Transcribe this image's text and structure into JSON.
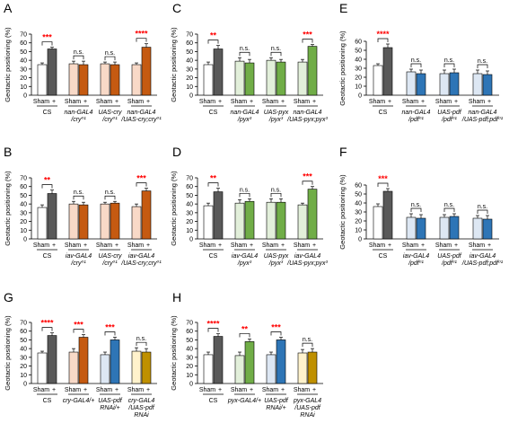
{
  "colors": {
    "sham": "#ffffff",
    "cs": "#595959",
    "cry_light": "#f8d9c7",
    "cry_dark": "#c55a11",
    "pyx_light": "#e2efda",
    "pyx_dark": "#70ad47",
    "pdf_light": "#dde7f3",
    "pdf_dark": "#2e75b6",
    "pdf_rnai_light": "#fff2cc",
    "pdf_rnai_dark": "#bf9000",
    "sig": "#ff0000",
    "ns": "#000000"
  },
  "chart_data": [
    {
      "panel": "A",
      "type": "bar",
      "ylabel": "Geotactic positioning (%)",
      "ylim": [
        0,
        70
      ],
      "yticks": [
        0,
        10,
        20,
        30,
        40,
        50,
        60,
        70
      ],
      "groups": [
        {
          "label": [
            "CS"
          ],
          "sham": 35,
          "sham_err": 2,
          "plus": 53,
          "plus_err": 2,
          "sig": "***",
          "light": "sham",
          "dark": "cs"
        },
        {
          "label": [
            "nan-GAL4",
            "/cry⁰¹"
          ],
          "sham": 36,
          "sham_err": 3,
          "plus": 35,
          "plus_err": 4,
          "sig": "n.s.",
          "light": "cry_light",
          "dark": "cry_dark"
        },
        {
          "label": [
            "UAS-cry",
            "/cry⁰¹"
          ],
          "sham": 36,
          "sham_err": 2,
          "plus": 35,
          "plus_err": 3,
          "sig": "n.s.",
          "light": "cry_light",
          "dark": "cry_dark"
        },
        {
          "label": [
            "nan-GAL4",
            "/UAS-cry;cry⁰¹"
          ],
          "sham": 35,
          "sham_err": 2,
          "plus": 55,
          "plus_err": 4,
          "sig": "****",
          "light": "cry_light",
          "dark": "cry_dark"
        }
      ]
    },
    {
      "panel": "B",
      "type": "bar",
      "ylabel": "Geotactic positioning (%)",
      "ylim": [
        0,
        70
      ],
      "yticks": [
        0,
        10,
        20,
        30,
        40,
        50,
        60,
        70
      ],
      "groups": [
        {
          "label": [
            "CS"
          ],
          "sham": 36,
          "sham_err": 3,
          "plus": 52,
          "plus_err": 4,
          "sig": "**",
          "light": "sham",
          "dark": "cs"
        },
        {
          "label": [
            "iav-GAL4",
            "/cry⁰¹"
          ],
          "sham": 40,
          "sham_err": 3,
          "plus": 39,
          "plus_err": 3,
          "sig": "n.s.",
          "light": "cry_light",
          "dark": "cry_dark"
        },
        {
          "label": [
            "UAS-cry",
            "/cry⁰¹"
          ],
          "sham": 40,
          "sham_err": 2,
          "plus": 41,
          "plus_err": 2,
          "sig": "n.s.",
          "light": "cry_light",
          "dark": "cry_dark"
        },
        {
          "label": [
            "iav-GAL4",
            "/UAS-cry;cry⁰¹"
          ],
          "sham": 37,
          "sham_err": 3,
          "plus": 55,
          "plus_err": 3,
          "sig": "***",
          "light": "cry_light",
          "dark": "cry_dark"
        }
      ]
    },
    {
      "panel": "C",
      "type": "bar",
      "ylabel": "Geotactic positioning (%)",
      "ylim": [
        0,
        70
      ],
      "yticks": [
        0,
        10,
        20,
        30,
        40,
        50,
        60,
        70
      ],
      "groups": [
        {
          "label": [
            "CS"
          ],
          "sham": 35,
          "sham_err": 3,
          "plus": 53,
          "plus_err": 4,
          "sig": "**",
          "light": "sham",
          "dark": "cs"
        },
        {
          "label": [
            "nan-GAL4",
            "/pyx³"
          ],
          "sham": 39,
          "sham_err": 4,
          "plus": 37,
          "plus_err": 4,
          "sig": "n.s.",
          "light": "pyx_light",
          "dark": "pyx_dark"
        },
        {
          "label": [
            "UAS-pyx",
            "/pyx³"
          ],
          "sham": 40,
          "sham_err": 3,
          "plus": 38,
          "plus_err": 3,
          "sig": "n.s.",
          "light": "pyx_light",
          "dark": "pyx_dark"
        },
        {
          "label": [
            "nan-GAL4",
            "/UAS-pyx;pyx³"
          ],
          "sham": 38,
          "sham_err": 3,
          "plus": 56,
          "plus_err": 2,
          "sig": "***",
          "light": "pyx_light",
          "dark": "pyx_dark"
        }
      ]
    },
    {
      "panel": "D",
      "type": "bar",
      "ylabel": "Geotactic positioning (%)",
      "ylim": [
        0,
        70
      ],
      "yticks": [
        0,
        10,
        20,
        30,
        40,
        50,
        60,
        70
      ],
      "groups": [
        {
          "label": [
            "CS"
          ],
          "sham": 38,
          "sham_err": 3,
          "plus": 54,
          "plus_err": 4,
          "sig": "**",
          "light": "sham",
          "dark": "cs"
        },
        {
          "label": [
            "iav-GAL4",
            "/pyx³"
          ],
          "sham": 41,
          "sham_err": 4,
          "plus": 43,
          "plus_err": 3,
          "sig": "n.s.",
          "light": "pyx_light",
          "dark": "pyx_dark"
        },
        {
          "label": [
            "UAS-pyx",
            "/pyx³"
          ],
          "sham": 42,
          "sham_err": 4,
          "plus": 42,
          "plus_err": 4,
          "sig": "n.s.",
          "light": "pyx_light",
          "dark": "pyx_dark"
        },
        {
          "label": [
            "iav-GAL4",
            "/UAS-pyx;pyx³"
          ],
          "sham": 39,
          "sham_err": 2,
          "plus": 57,
          "plus_err": 3,
          "sig": "***",
          "light": "pyx_light",
          "dark": "pyx_dark"
        }
      ]
    },
    {
      "panel": "E",
      "type": "bar",
      "ylabel": "Geotactic positioning (%)",
      "ylim": [
        0,
        60
      ],
      "yticks": [
        0,
        10,
        20,
        30,
        40,
        50,
        60
      ],
      "groups": [
        {
          "label": [
            "CS"
          ],
          "sham": 33,
          "sham_err": 2,
          "plus": 53,
          "plus_err": 4,
          "sig": "****",
          "light": "sham",
          "dark": "cs"
        },
        {
          "label": [
            "nan-GAL4",
            "/pdf⁰¹"
          ],
          "sham": 26,
          "sham_err": 3,
          "plus": 24,
          "plus_err": 4,
          "sig": "n.s.",
          "light": "pdf_light",
          "dark": "pdf_dark"
        },
        {
          "label": [
            "UAS-pdf",
            "/pdf⁰¹"
          ],
          "sham": 24,
          "sham_err": 4,
          "plus": 25,
          "plus_err": 4,
          "sig": "n.s.",
          "light": "pdf_light",
          "dark": "pdf_dark"
        },
        {
          "label": [
            "nan-GAL4",
            "/UAS-pdf;pdf⁰¹"
          ],
          "sham": 24,
          "sham_err": 4,
          "plus": 23,
          "plus_err": 4,
          "sig": "n.s.",
          "light": "pdf_light",
          "dark": "pdf_dark"
        }
      ]
    },
    {
      "panel": "F",
      "type": "bar",
      "ylabel": "Geotactic positioning (%)",
      "ylim": [
        0,
        60
      ],
      "yticks": [
        0,
        10,
        20,
        30,
        40,
        50,
        60
      ],
      "groups": [
        {
          "label": [
            "CS"
          ],
          "sham": 36,
          "sham_err": 3,
          "plus": 53,
          "plus_err": 3,
          "sig": "***",
          "light": "sham",
          "dark": "cs"
        },
        {
          "label": [
            "iav-GAL4",
            "/pdf⁰¹"
          ],
          "sham": 24,
          "sham_err": 4,
          "plus": 23,
          "plus_err": 4,
          "sig": "n.s.",
          "light": "pdf_light",
          "dark": "pdf_dark"
        },
        {
          "label": [
            "UAS-pdf",
            "/pdf⁰¹"
          ],
          "sham": 24,
          "sham_err": 3,
          "plus": 25,
          "plus_err": 3,
          "sig": "n.s.",
          "light": "pdf_light",
          "dark": "pdf_dark"
        },
        {
          "label": [
            "iav-GAL4",
            "/UAS-pdf;pdf⁰¹"
          ],
          "sham": 23,
          "sham_err": 3,
          "plus": 22,
          "plus_err": 4,
          "sig": "n.s.",
          "light": "pdf_light",
          "dark": "pdf_dark"
        }
      ]
    },
    {
      "panel": "G",
      "type": "bar",
      "ylabel": "Geotactic positioning (%)",
      "ylim": [
        0,
        70
      ],
      "yticks": [
        0,
        10,
        20,
        30,
        40,
        50,
        60,
        70
      ],
      "groups": [
        {
          "label": [
            "CS"
          ],
          "sham": 35,
          "sham_err": 2,
          "plus": 55,
          "plus_err": 3,
          "sig": "****",
          "light": "sham",
          "dark": "cs"
        },
        {
          "label": [
            "cry-GAL4/+"
          ],
          "sham": 36,
          "sham_err": 4,
          "plus": 53,
          "plus_err": 3,
          "sig": "***",
          "light": "cry_light",
          "dark": "cry_dark"
        },
        {
          "label": [
            "UAS-pdf",
            "RNAi/+"
          ],
          "sham": 33,
          "sham_err": 3,
          "plus": 50,
          "plus_err": 3,
          "sig": "***",
          "light": "pdf_light",
          "dark": "pdf_dark"
        },
        {
          "label": [
            "cry-GAL4",
            "/UAS-pdf",
            "RNAi"
          ],
          "sham": 37,
          "sham_err": 4,
          "plus": 36,
          "plus_err": 4,
          "sig": "n.s.",
          "light": "pdf_rnai_light",
          "dark": "pdf_rnai_dark"
        }
      ]
    },
    {
      "panel": "H",
      "type": "bar",
      "ylabel": "Geotactic positioning (%)",
      "ylim": [
        0,
        70
      ],
      "yticks": [
        0,
        10,
        20,
        30,
        40,
        50,
        60,
        70
      ],
      "groups": [
        {
          "label": [
            "CS"
          ],
          "sham": 33,
          "sham_err": 3,
          "plus": 54,
          "plus_err": 3,
          "sig": "****",
          "light": "sham",
          "dark": "cs"
        },
        {
          "label": [
            "pyx-GAL4/+"
          ],
          "sham": 32,
          "sham_err": 4,
          "plus": 48,
          "plus_err": 3,
          "sig": "**",
          "light": "pyx_light",
          "dark": "pyx_dark"
        },
        {
          "label": [
            "UAS-pdf",
            "RNAi/+"
          ],
          "sham": 33,
          "sham_err": 3,
          "plus": 50,
          "plus_err": 3,
          "sig": "***",
          "light": "pdf_light",
          "dark": "pdf_dark"
        },
        {
          "label": [
            "pyx-GAL4",
            "/UAS-pdf",
            "RNAi"
          ],
          "sham": 35,
          "sham_err": 4,
          "plus": 36,
          "plus_err": 4,
          "sig": "n.s.",
          "light": "pdf_rnai_light",
          "dark": "pdf_rnai_dark"
        }
      ]
    }
  ],
  "xtick": {
    "sham": "Sham",
    "plus": "+"
  }
}
